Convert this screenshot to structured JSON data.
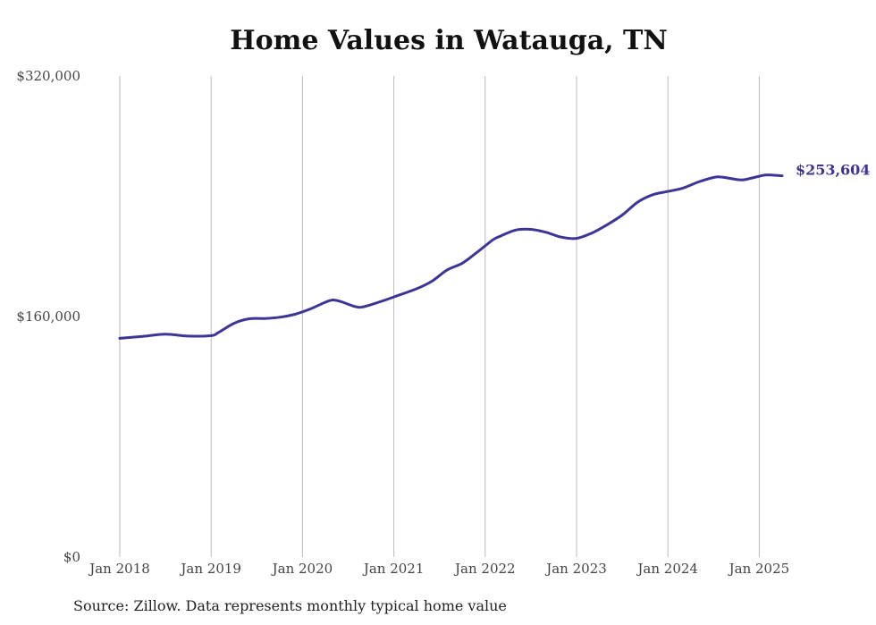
{
  "title": "Home Values in Watauga, TN",
  "source": "Source: Zillow. Data represents monthly typical home value",
  "colors": {
    "line": "#3d3497",
    "grid": "#bbbbbb",
    "text": "#444444"
  },
  "chart_data": {
    "type": "line",
    "title": "Home Values in Watauga, TN",
    "xlabel": "",
    "ylabel": "",
    "ylim": [
      0,
      320000
    ],
    "grid": "vertical",
    "legend": "none",
    "yticks": [
      {
        "value": 0,
        "label": "$0"
      },
      {
        "value": 160000,
        "label": "$160,000"
      },
      {
        "value": 320000,
        "label": "$320,000"
      }
    ],
    "xticks": [
      {
        "value": "2018-01",
        "label": "Jan 2018"
      },
      {
        "value": "2019-01",
        "label": "Jan 2019"
      },
      {
        "value": "2020-01",
        "label": "Jan 2020"
      },
      {
        "value": "2021-01",
        "label": "Jan 2021"
      },
      {
        "value": "2022-01",
        "label": "Jan 2022"
      },
      {
        "value": "2023-01",
        "label": "Jan 2023"
      },
      {
        "value": "2024-01",
        "label": "Jan 2024"
      },
      {
        "value": "2025-01",
        "label": "Jan 2025"
      }
    ],
    "end_label": "$253,604",
    "series": [
      {
        "x": [
          "2018-01",
          "2018-04",
          "2018-07",
          "2018-10",
          "2019-01",
          "2019-02",
          "2019-04",
          "2019-06",
          "2019-08",
          "2019-10",
          "2019-12",
          "2020-02",
          "2020-04",
          "2020-05",
          "2020-06",
          "2020-08",
          "2020-09",
          "2020-11",
          "2021-01",
          "2021-04",
          "2021-06",
          "2021-08",
          "2021-10",
          "2021-12",
          "2022-02",
          "2022-03",
          "2022-05",
          "2022-07",
          "2022-09",
          "2022-11",
          "2023-01",
          "2023-03",
          "2023-05",
          "2023-07",
          "2023-09",
          "2023-11",
          "2024-01",
          "2024-03",
          "2024-05",
          "2024-07",
          "2024-08",
          "2024-10",
          "2024-11",
          "2025-01",
          "2025-02",
          "2025-04"
        ],
        "values": [
          145500,
          146800,
          148200,
          147000,
          147300,
          149500,
          155500,
          158500,
          158700,
          159500,
          161500,
          165000,
          169500,
          171000,
          170000,
          166500,
          166500,
          169500,
          173000,
          178500,
          183500,
          191000,
          195500,
          203000,
          211000,
          213500,
          217500,
          218000,
          216000,
          212800,
          212000,
          215500,
          221000,
          227500,
          236000,
          241000,
          243200,
          245500,
          249500,
          252500,
          252800,
          251200,
          251000,
          253300,
          254200,
          253604
        ]
      }
    ]
  }
}
